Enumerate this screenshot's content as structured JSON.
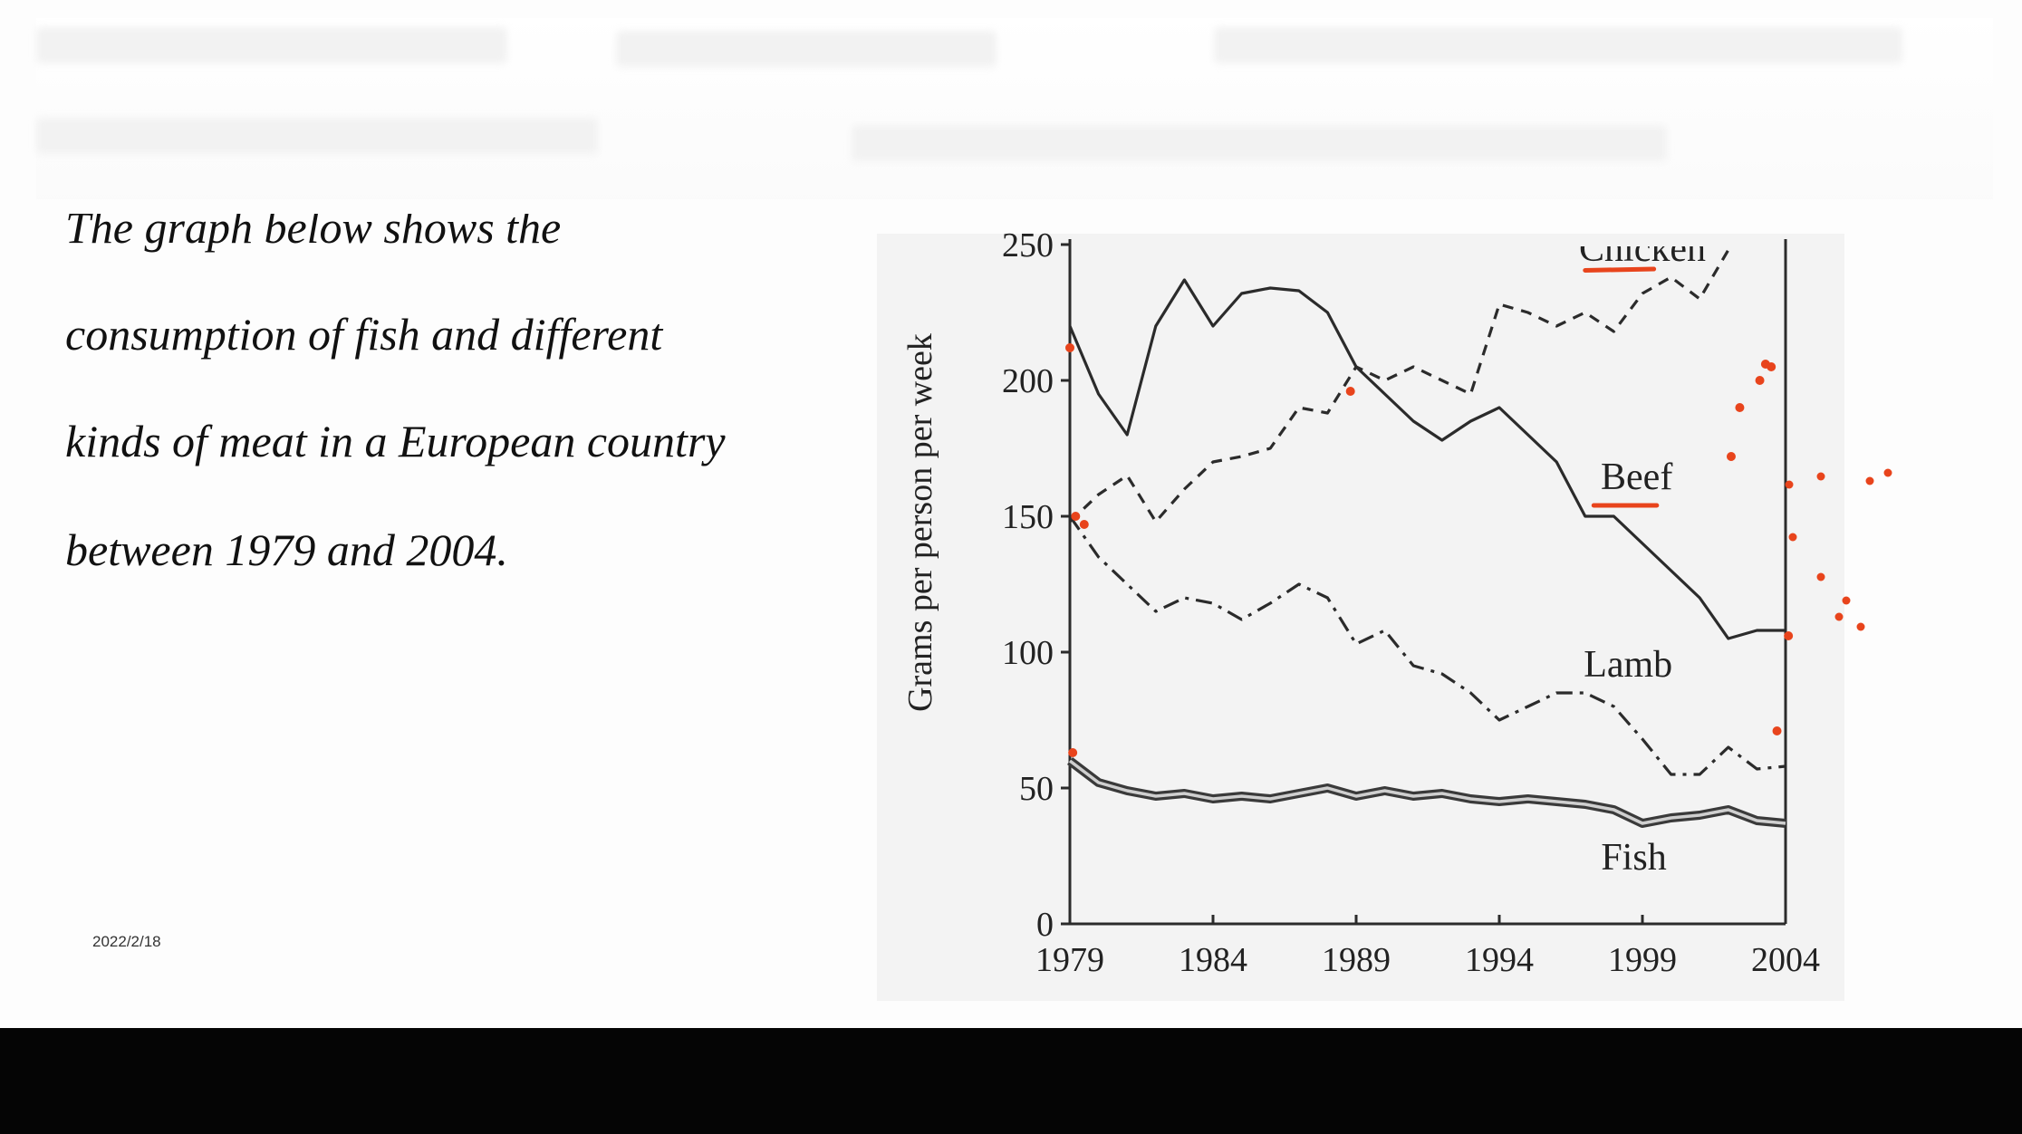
{
  "slide": {
    "caption_lines": [
      "The graph below shows the",
      "consumption of fish and different",
      "kinds of meat in a European country",
      "between 1979 and 2004."
    ],
    "date": "2022/2/18"
  },
  "chart_data": {
    "type": "line",
    "title": "",
    "xlabel": "",
    "ylabel": "Grams per person per week",
    "xlim": [
      1979,
      2004
    ],
    "ylim": [
      0,
      250
    ],
    "x_ticks": [
      1979,
      1984,
      1989,
      1994,
      1999,
      2004
    ],
    "y_ticks": [
      0,
      50,
      100,
      150,
      200,
      250
    ],
    "grid": false,
    "legend": "inline labels",
    "series": [
      {
        "name": "Beef",
        "style": "solid",
        "x": [
          1979,
          1980,
          1981,
          1982,
          1983,
          1984,
          1985,
          1986,
          1987,
          1988,
          1989,
          1990,
          1991,
          1992,
          1993,
          1994,
          1995,
          1996,
          1997,
          1998,
          1999,
          2000,
          2001,
          2002,
          2003,
          2004
        ],
        "y": [
          220,
          195,
          180,
          220,
          237,
          220,
          232,
          234,
          233,
          225,
          205,
          195,
          185,
          178,
          185,
          190,
          180,
          170,
          150,
          150,
          140,
          130,
          120,
          105,
          108,
          108
        ]
      },
      {
        "name": "Chicken",
        "style": "dashed",
        "x": [
          1979,
          1980,
          1981,
          1982,
          1983,
          1984,
          1985,
          1986,
          1987,
          1988,
          1989,
          1990,
          1991,
          1992,
          1993,
          1994,
          1995,
          1996,
          1997,
          1998,
          1999,
          2000,
          2001,
          2002
        ],
        "y": [
          148,
          158,
          165,
          148,
          160,
          170,
          172,
          175,
          190,
          188,
          205,
          200,
          205,
          200,
          195,
          228,
          225,
          220,
          225,
          218,
          232,
          238,
          230,
          248
        ]
      },
      {
        "name": "Lamb",
        "style": "dashdot",
        "x": [
          1979,
          1980,
          1981,
          1982,
          1983,
          1984,
          1985,
          1986,
          1987,
          1988,
          1989,
          1990,
          1991,
          1992,
          1993,
          1994,
          1995,
          1996,
          1997,
          1998,
          1999,
          2000,
          2001,
          2002,
          2003,
          2004
        ],
        "y": [
          150,
          135,
          125,
          115,
          120,
          118,
          112,
          118,
          125,
          120,
          103,
          108,
          95,
          92,
          85,
          75,
          80,
          85,
          85,
          80,
          68,
          55,
          55,
          65,
          57,
          58
        ]
      },
      {
        "name": "Fish",
        "style": "double",
        "x": [
          1979,
          1980,
          1981,
          1982,
          1983,
          1984,
          1985,
          1986,
          1987,
          1988,
          1989,
          1990,
          1991,
          1992,
          1993,
          1994,
          1995,
          1996,
          1997,
          1998,
          1999,
          2000,
          2001,
          2002,
          2003,
          2004
        ],
        "y": [
          60,
          52,
          49,
          47,
          48,
          46,
          47,
          46,
          48,
          50,
          47,
          49,
          47,
          48,
          46,
          45,
          46,
          45,
          44,
          42,
          37,
          39,
          40,
          42,
          38,
          37
        ]
      }
    ]
  },
  "colors": {
    "line": "#2b2b2b",
    "panel": "#f3f3f3",
    "annotation": "#e8441c"
  }
}
